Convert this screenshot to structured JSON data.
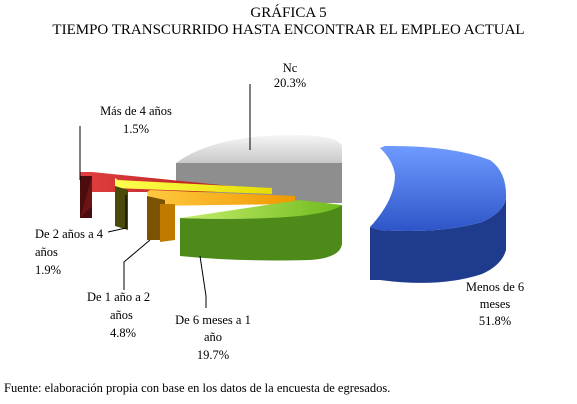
{
  "chart_data": {
    "type": "pie",
    "title": "GRÁFICA 5",
    "subtitle": "TIEMPO TRANSCURRIDO HASTA ENCONTRAR EL EMPLEO ACTUAL",
    "slices": [
      {
        "label_lines": [
          "Menos de 6",
          "meses"
        ],
        "value_text": "51.8%",
        "value": 51.8,
        "color": "#3a5fd0"
      },
      {
        "label_lines": [
          "De 6 meses a 1",
          "año"
        ],
        "value_text": "19.7%",
        "value": 19.7,
        "color": "#5aa81e"
      },
      {
        "label_lines": [
          "De 1 año a 2",
          "años"
        ],
        "value_text": "4.8%",
        "value": 4.8,
        "color": "#f0a000"
      },
      {
        "label_lines": [
          "De 2 años a 4",
          "años"
        ],
        "value_text": "1.9%",
        "value": 1.9,
        "color": "#d8d000"
      },
      {
        "label_lines": [
          "Más de 4 años"
        ],
        "value_text": "1.5%",
        "value": 1.5,
        "color": "#c02020"
      },
      {
        "label_lines": [
          "Nc"
        ],
        "value_text": "20.3%",
        "value": 20.3,
        "color": "#d4d4d4"
      }
    ],
    "legend": "none"
  },
  "footer": {
    "source": "Fuente: elaboración propia con base en los datos de la encuesta de egresados."
  }
}
